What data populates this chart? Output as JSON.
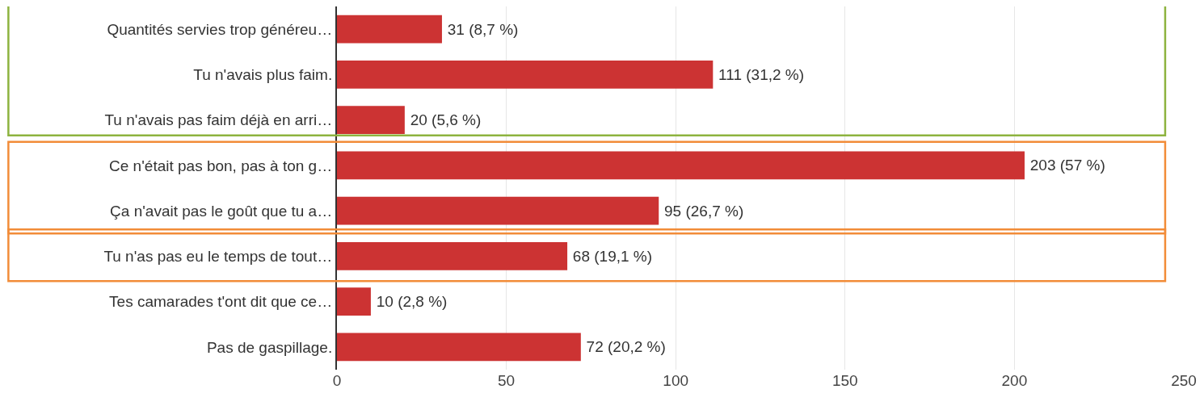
{
  "chart_data": {
    "type": "bar",
    "orientation": "horizontal",
    "categories": [
      "Quantités servies trop généreu…",
      "Tu n'avais plus faim.",
      "Tu n'avais pas faim déjà en arri…",
      "Ce n'était pas bon, pas à ton g…",
      "Ça n'avait pas le goût que tu a…",
      "Tu n'as pas eu le temps de tout…",
      "Tes camarades t'ont dit que ce…",
      "Pas de gaspillage."
    ],
    "values": [
      31,
      111,
      20,
      203,
      95,
      68,
      10,
      72
    ],
    "value_labels": [
      "31 (8,7 %)",
      "111 (31,2 %)",
      "20 (5,6 %)",
      "203 (57 %)",
      "95 (26,7 %)",
      "68 (19,1 %)",
      "10 (2,8 %)",
      "72 (20,2 %)"
    ],
    "color": "#cc3333",
    "xlim": [
      0,
      250
    ],
    "xticks": [
      0,
      50,
      100,
      150,
      200,
      250
    ],
    "grid": "x"
  }
}
